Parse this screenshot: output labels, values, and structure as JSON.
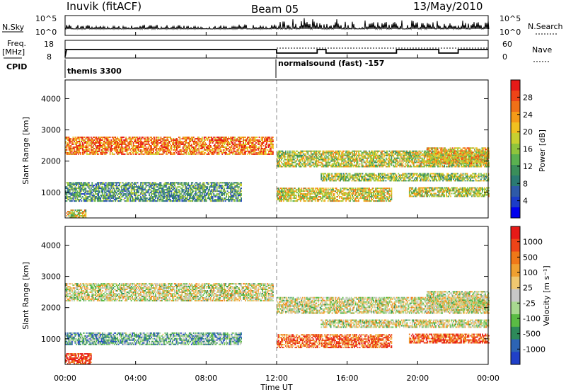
{
  "header": {
    "station": "Inuvik (fitACF)",
    "beam": "Beam 05",
    "date": "13/May/2010"
  },
  "params": {
    "nsky_label": "N.Sky",
    "nsky_ticks": [
      "10^5",
      "10^0"
    ],
    "nsearch_label": "N.Search",
    "nsearch_ticks": [
      "10^5",
      "10^0"
    ],
    "freq_label": "Freq.",
    "freq_units": "[MHz]",
    "freq_ticks": [
      "18",
      "8"
    ],
    "nave_label": "Nave",
    "nave_ticks": [
      "60",
      "0"
    ],
    "cpid_label": "CPID",
    "cpid_segments": [
      {
        "text": "themis 3300",
        "start_hour": 0
      },
      {
        "text": "normalsound (fast) -157",
        "start_hour": 12
      }
    ]
  },
  "chart_data": [
    {
      "type": "heatmap",
      "panel": "power",
      "ylabel": "Slant Range [km]",
      "ylim": [
        180,
        4600
      ],
      "yticks": [
        "1000",
        "2000",
        "3000",
        "4000"
      ],
      "ytick_values": [
        1000,
        2000,
        3000,
        4000
      ],
      "colorbar": {
        "label": "Power [dB]",
        "range": [
          0,
          32
        ],
        "ticks": [
          "4",
          "8",
          "12",
          "16",
          "20",
          "24",
          "28"
        ],
        "tick_values": [
          4,
          8,
          12,
          16,
          20,
          24,
          28
        ],
        "colors": [
          "#0000ee",
          "#1c3cc8",
          "#2e5aa8",
          "#2a7a72",
          "#3a8e5a",
          "#5ab050",
          "#8fc43c",
          "#c8d030",
          "#f0c020",
          "#f59a18",
          "#f07018",
          "#ee4418",
          "#e61a18"
        ]
      },
      "bands": [
        {
          "t0": 0.0,
          "t1": 11.8,
          "r0": 2200,
          "r1": 2750,
          "level": 0.8
        },
        {
          "t0": 0.0,
          "t1": 10.0,
          "r0": 700,
          "r1": 1300,
          "level": 0.35
        },
        {
          "t0": 0.0,
          "t1": 1.2,
          "r0": 180,
          "r1": 450,
          "level": 0.6
        },
        {
          "t0": 12.0,
          "t1": 24.0,
          "r0": 1800,
          "r1": 2300,
          "level": 0.55
        },
        {
          "t0": 12.0,
          "t1": 18.5,
          "r0": 700,
          "r1": 1150,
          "level": 0.6
        },
        {
          "t0": 14.5,
          "t1": 24.0,
          "r0": 1350,
          "r1": 1600,
          "level": 0.5
        },
        {
          "t0": 19.5,
          "t1": 24.0,
          "r0": 850,
          "r1": 1150,
          "level": 0.55
        },
        {
          "t0": 20.5,
          "t1": 24.0,
          "r0": 1900,
          "r1": 2400,
          "level": 0.65
        }
      ]
    },
    {
      "type": "heatmap",
      "panel": "velocity",
      "ylabel": "Slant Range [km]",
      "xlabel": "Time UT",
      "ylim": [
        180,
        4600
      ],
      "yticks": [
        "1000",
        "2000",
        "3000",
        "4000"
      ],
      "ytick_values": [
        1000,
        2000,
        3000,
        4000
      ],
      "xlim": [
        0,
        24
      ],
      "xticks": [
        "00:00",
        "04:00",
        "08:00",
        "12:00",
        "16:00",
        "20:00",
        "00:00"
      ],
      "xtick_values": [
        0,
        4,
        8,
        12,
        16,
        20,
        24
      ],
      "colorbar": {
        "label": "Velocity [m s⁻¹]",
        "ticks": [
          "1000",
          "500",
          "100",
          "25",
          "-25",
          "-100",
          "-500",
          "-1000"
        ],
        "colors": [
          "#2040c8",
          "#2c64b4",
          "#2e8a5a",
          "#5abb44",
          "#a8d890",
          "#c8c8c8",
          "#f0c870",
          "#f0a030",
          "#f07818",
          "#ee4418",
          "#e61a18"
        ]
      },
      "bands": [
        {
          "t0": 0.0,
          "t1": 11.8,
          "r0": 2200,
          "r1": 2750,
          "level": 0.5
        },
        {
          "t0": 0.0,
          "t1": 10.0,
          "r0": 800,
          "r1": 1200,
          "level": 0.3
        },
        {
          "t0": 0.0,
          "t1": 1.5,
          "r0": 180,
          "r1": 500,
          "level": 0.9
        },
        {
          "t0": 12.0,
          "t1": 24.0,
          "r0": 1800,
          "r1": 2300,
          "level": 0.5
        },
        {
          "t0": 12.0,
          "t1": 18.5,
          "r0": 700,
          "r1": 1150,
          "level": 0.8
        },
        {
          "t0": 14.5,
          "t1": 24.0,
          "r0": 1350,
          "r1": 1600,
          "level": 0.5
        },
        {
          "t0": 19.5,
          "t1": 24.0,
          "r0": 850,
          "r1": 1150,
          "level": 0.85
        },
        {
          "t0": 20.5,
          "t1": 24.0,
          "r0": 1900,
          "r1": 2500,
          "level": 0.5
        }
      ]
    }
  ],
  "time_axis": {
    "label": "Time UT",
    "ticks": [
      "00:00",
      "04:00",
      "08:00",
      "12:00",
      "16:00",
      "20:00",
      "00:00"
    ],
    "tick_values": [
      0,
      4,
      8,
      12,
      16,
      20,
      24
    ]
  }
}
